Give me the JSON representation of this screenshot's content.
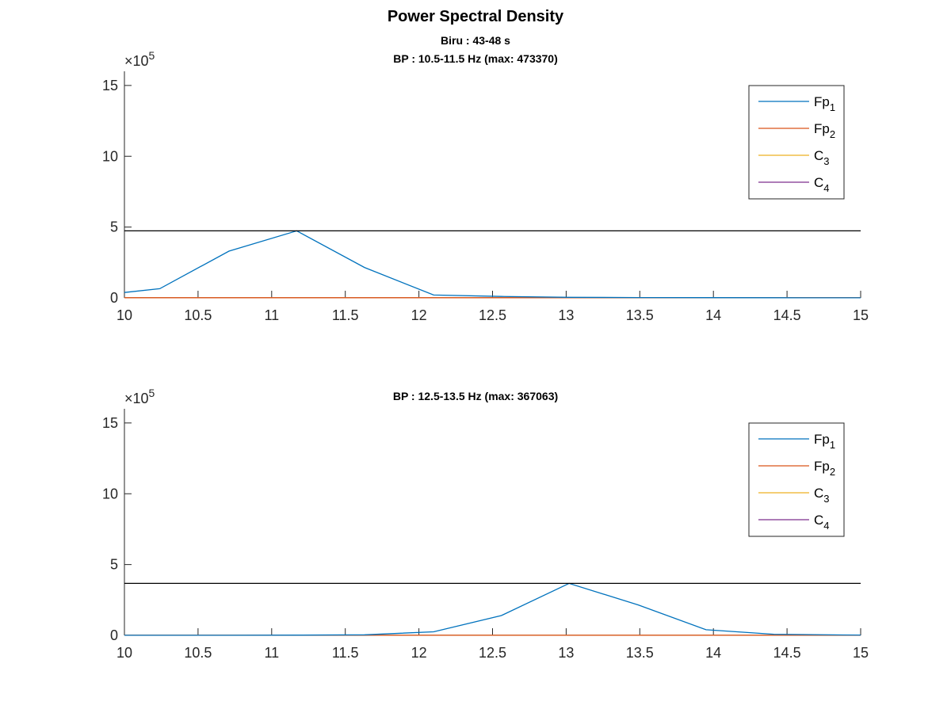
{
  "figure_title": "Power Spectral Density",
  "colors": {
    "Fp1": "#0072BD",
    "Fp2": "#D95319",
    "C3": "#EDB120",
    "C4": "#7E2F8E",
    "max_line": "#000000",
    "axis": "#262626"
  },
  "chart_data": [
    {
      "type": "line",
      "subtitle_lines": [
        "Biru : 43-48 s",
        "BP : 10.5-11.5 Hz (max: 473370)"
      ],
      "xlabel": "",
      "ylabel": "",
      "xlim": [
        10,
        15
      ],
      "ylim": [
        0,
        1600000
      ],
      "x_ticks": [
        "10",
        "10.5",
        "11",
        "11.5",
        "12",
        "12.5",
        "13",
        "13.5",
        "14",
        "14.5",
        "15"
      ],
      "y_ticks": [
        "0",
        "5",
        "10",
        "15"
      ],
      "y_exponent": "5",
      "max_value": 473370,
      "legend_position": "top-right",
      "legend": [
        {
          "base": "Fp",
          "sub": "1",
          "color_key": "Fp1"
        },
        {
          "base": "Fp",
          "sub": "2",
          "color_key": "Fp2"
        },
        {
          "base": "C",
          "sub": "3",
          "color_key": "C3"
        },
        {
          "base": "C",
          "sub": "4",
          "color_key": "C4"
        }
      ],
      "x": [
        10,
        10.24,
        10.71,
        11.17,
        11.63,
        12.1,
        12.56,
        13.02,
        13.49,
        13.95,
        14.41,
        14.88,
        15
      ],
      "series": [
        {
          "name": "Fp1",
          "values": [
            38000,
            65000,
            330000,
            473370,
            215000,
            20000,
            10000,
            4000,
            2000,
            1500,
            1000,
            800,
            800
          ]
        },
        {
          "name": "Fp2",
          "values": [
            1000,
            1000,
            1000,
            1000,
            1000,
            1000,
            1000,
            1000,
            1000,
            1000,
            1000,
            1000,
            1000
          ]
        },
        {
          "name": "C3",
          "values": [
            500,
            500,
            500,
            500,
            500,
            500,
            500,
            500,
            500,
            500,
            500,
            500,
            500
          ]
        },
        {
          "name": "C4",
          "values": [
            800,
            800,
            800,
            800,
            800,
            800,
            800,
            800,
            800,
            800,
            800,
            800,
            800
          ]
        }
      ]
    },
    {
      "type": "line",
      "subtitle_lines": [
        "BP : 12.5-13.5 Hz (max: 367063)"
      ],
      "xlabel": "",
      "ylabel": "",
      "xlim": [
        10,
        15
      ],
      "ylim": [
        0,
        1600000
      ],
      "x_ticks": [
        "10",
        "10.5",
        "11",
        "11.5",
        "12",
        "12.5",
        "13",
        "13.5",
        "14",
        "14.5",
        "15"
      ],
      "y_ticks": [
        "0",
        "5",
        "10",
        "15"
      ],
      "y_exponent": "5",
      "max_value": 367063,
      "legend_position": "top-right",
      "legend": [
        {
          "base": "Fp",
          "sub": "1",
          "color_key": "Fp1"
        },
        {
          "base": "Fp",
          "sub": "2",
          "color_key": "Fp2"
        },
        {
          "base": "C",
          "sub": "3",
          "color_key": "C3"
        },
        {
          "base": "C",
          "sub": "4",
          "color_key": "C4"
        }
      ],
      "x": [
        10,
        10.24,
        10.71,
        11.17,
        11.63,
        12.1,
        12.56,
        13.02,
        13.49,
        13.95,
        14.41,
        14.88,
        15
      ],
      "series": [
        {
          "name": "Fp1",
          "values": [
            500,
            600,
            800,
            1500,
            4000,
            25000,
            140000,
            367063,
            215000,
            40000,
            8000,
            3000,
            2500
          ]
        },
        {
          "name": "Fp2",
          "values": [
            800,
            800,
            800,
            800,
            800,
            800,
            800,
            800,
            800,
            800,
            800,
            800,
            800
          ]
        },
        {
          "name": "C3",
          "values": [
            500,
            500,
            500,
            500,
            500,
            500,
            500,
            500,
            500,
            500,
            500,
            500,
            500
          ]
        },
        {
          "name": "C4",
          "values": [
            800,
            800,
            800,
            800,
            800,
            800,
            800,
            800,
            800,
            800,
            800,
            800,
            800
          ]
        }
      ]
    }
  ]
}
